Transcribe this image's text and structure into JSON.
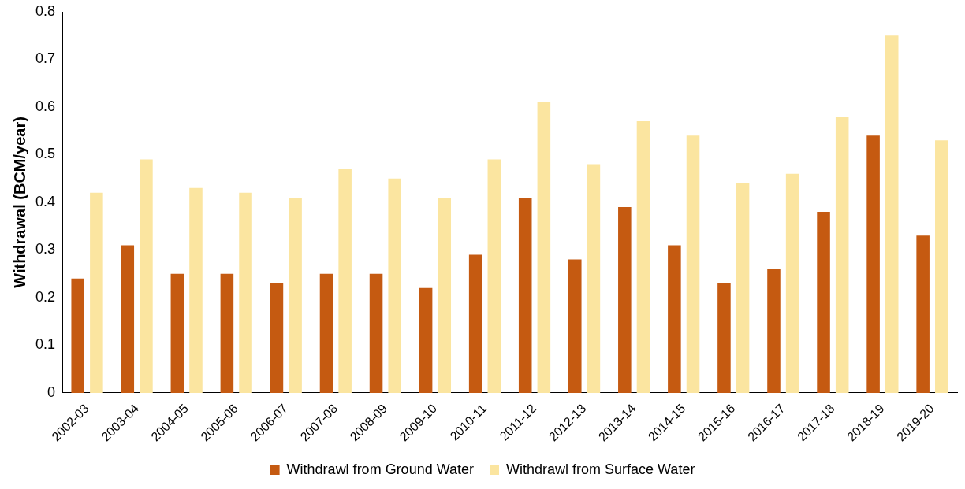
{
  "chart_data": {
    "type": "bar",
    "ylabel": "Withdrawal (BCM/year)",
    "categories": [
      "2002-03",
      "2003-04",
      "2004-05",
      "2005-06",
      "2006-07",
      "2007-08",
      "2008-09",
      "2009-10",
      "2010-11",
      "2011-12",
      "2012-13",
      "2013-14",
      "2014-15",
      "2015-16",
      "2016-17",
      "2017-18",
      "2018-19",
      "2019-20"
    ],
    "series": [
      {
        "name": "Withdrawl from Ground Water",
        "color": "#c55a11",
        "values": [
          0.24,
          0.31,
          0.25,
          0.25,
          0.23,
          0.25,
          0.25,
          0.22,
          0.29,
          0.41,
          0.28,
          0.39,
          0.31,
          0.23,
          0.26,
          0.38,
          0.54,
          0.33
        ]
      },
      {
        "name": "Withdrawl from Surface Water",
        "color": "#fbe5a0",
        "values": [
          0.42,
          0.49,
          0.43,
          0.42,
          0.41,
          0.47,
          0.45,
          0.41,
          0.49,
          0.61,
          0.48,
          0.57,
          0.54,
          0.44,
          0.46,
          0.58,
          0.75,
          0.53
        ]
      }
    ],
    "ylim": [
      0,
      0.8
    ],
    "yticks": [
      0,
      0.1,
      0.2,
      0.3,
      0.4,
      0.5,
      0.6,
      0.7,
      0.8
    ],
    "grid": false,
    "legend": "bottom"
  }
}
